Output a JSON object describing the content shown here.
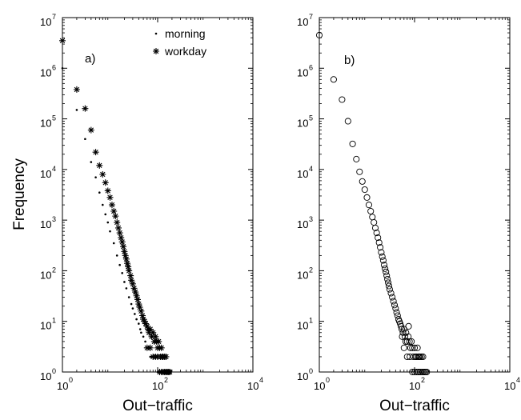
{
  "chart_data": [
    {
      "type": "scatter",
      "panel_label": "a)",
      "xlabel": "Out−traffic",
      "ylabel": "Frequency",
      "xscale": "log",
      "yscale": "log",
      "xlim": [
        1,
        10000
      ],
      "ylim": [
        1,
        10000000
      ],
      "x_ticks": [
        {
          "value": 1,
          "base": "10",
          "exp": "0"
        },
        {
          "value": 100,
          "base": "10",
          "exp": "2"
        },
        {
          "value": 10000,
          "base": "10",
          "exp": "4"
        }
      ],
      "y_ticks": [
        {
          "value": 1,
          "base": "10",
          "exp": "0"
        },
        {
          "value": 10,
          "base": "10",
          "exp": "1"
        },
        {
          "value": 100,
          "base": "10",
          "exp": "2"
        },
        {
          "value": 1000,
          "base": "10",
          "exp": "3"
        },
        {
          "value": 10000,
          "base": "10",
          "exp": "4"
        },
        {
          "value": 100000,
          "base": "10",
          "exp": "5"
        },
        {
          "value": 1000000,
          "base": "10",
          "exp": "6"
        },
        {
          "value": 10000000,
          "base": "10",
          "exp": "7"
        }
      ],
      "legend": "top-right",
      "series": [
        {
          "name": "morning",
          "marker": "dot",
          "points": [
            [
              1,
              1000000
            ],
            [
              2,
              150000
            ],
            [
              3,
              40000
            ],
            [
              4,
              14000
            ],
            [
              5,
              7000
            ],
            [
              6,
              3500
            ],
            [
              7,
              2000
            ],
            [
              8,
              1300
            ],
            [
              9,
              900
            ],
            [
              10,
              600
            ],
            [
              12,
              350
            ],
            [
              14,
              200
            ],
            [
              16,
              130
            ],
            [
              18,
              90
            ],
            [
              20,
              60
            ],
            [
              22,
              45
            ],
            [
              25,
              30
            ],
            [
              28,
              22
            ],
            [
              30,
              18
            ],
            [
              33,
              14
            ],
            [
              36,
              11
            ],
            [
              40,
              9
            ],
            [
              43,
              7
            ],
            [
              45,
              6
            ],
            [
              50,
              5
            ],
            [
              55,
              4
            ],
            [
              60,
              3
            ],
            [
              65,
              3
            ],
            [
              70,
              2
            ],
            [
              75,
              2
            ],
            [
              80,
              2
            ],
            [
              90,
              2
            ],
            [
              100,
              1
            ],
            [
              110,
              1
            ],
            [
              120,
              1
            ],
            [
              130,
              1
            ],
            [
              140,
              1
            ],
            [
              150,
              1
            ],
            [
              170,
              1
            ],
            [
              190,
              1
            ]
          ]
        },
        {
          "name": "workday",
          "marker": "star",
          "points": [
            [
              1,
              3500000
            ],
            [
              2,
              380000
            ],
            [
              3,
              160000
            ],
            [
              4,
              60000
            ],
            [
              5,
              22000
            ],
            [
              6,
              12000
            ],
            [
              7,
              8000
            ],
            [
              8,
              5500
            ],
            [
              9,
              3800
            ],
            [
              10,
              2800
            ],
            [
              11,
              2000
            ],
            [
              12,
              1500
            ],
            [
              13,
              1200
            ],
            [
              14,
              900
            ],
            [
              15,
              700
            ],
            [
              16,
              560
            ],
            [
              17,
              450
            ],
            [
              18,
              370
            ],
            [
              19,
              300
            ],
            [
              20,
              240
            ],
            [
              21,
              200
            ],
            [
              22,
              170
            ],
            [
              23,
              140
            ],
            [
              24,
              120
            ],
            [
              25,
              100
            ],
            [
              27,
              80
            ],
            [
              28,
              65
            ],
            [
              30,
              55
            ],
            [
              32,
              45
            ],
            [
              34,
              38
            ],
            [
              36,
              32
            ],
            [
              38,
              27
            ],
            [
              40,
              22
            ],
            [
              42,
              19
            ],
            [
              45,
              16
            ],
            [
              48,
              13
            ],
            [
              50,
              11
            ],
            [
              53,
              10
            ],
            [
              56,
              9
            ],
            [
              60,
              8
            ],
            [
              63,
              7
            ],
            [
              66,
              6
            ],
            [
              70,
              7
            ],
            [
              75,
              5
            ],
            [
              80,
              6
            ],
            [
              85,
              4
            ],
            [
              90,
              5
            ],
            [
              95,
              4
            ],
            [
              100,
              3
            ],
            [
              105,
              4
            ],
            [
              110,
              3
            ],
            [
              115,
              2
            ],
            [
              120,
              3
            ],
            [
              125,
              2
            ],
            [
              130,
              2
            ],
            [
              140,
              2
            ],
            [
              150,
              2
            ],
            [
              60,
              3
            ],
            [
              70,
              3
            ],
            [
              80,
              2
            ],
            [
              90,
              2
            ],
            [
              100,
              2
            ],
            [
              110,
              1
            ],
            [
              120,
              1
            ],
            [
              130,
              1
            ],
            [
              140,
              1
            ],
            [
              150,
              1
            ],
            [
              160,
              1
            ],
            [
              170,
              1
            ],
            [
              180,
              1
            ]
          ]
        }
      ]
    },
    {
      "type": "scatter",
      "panel_label": "b)",
      "xlabel": "Out−traffic",
      "ylabel": "",
      "xscale": "log",
      "yscale": "log",
      "xlim": [
        1,
        10000
      ],
      "ylim": [
        1,
        10000000
      ],
      "x_ticks": [
        {
          "value": 1,
          "base": "10",
          "exp": "0"
        },
        {
          "value": 100,
          "base": "10",
          "exp": "2"
        },
        {
          "value": 10000,
          "base": "10",
          "exp": "4"
        }
      ],
      "y_ticks": [
        {
          "value": 1,
          "base": "10",
          "exp": "0"
        },
        {
          "value": 10,
          "base": "10",
          "exp": "1"
        },
        {
          "value": 100,
          "base": "10",
          "exp": "2"
        },
        {
          "value": 1000,
          "base": "10",
          "exp": "3"
        },
        {
          "value": 10000,
          "base": "10",
          "exp": "4"
        },
        {
          "value": 100000,
          "base": "10",
          "exp": "5"
        },
        {
          "value": 1000000,
          "base": "10",
          "exp": "6"
        },
        {
          "value": 10000000,
          "base": "10",
          "exp": "7"
        }
      ],
      "series": [
        {
          "marker": "circle",
          "points": [
            [
              1,
              4500000
            ],
            [
              2,
              600000
            ],
            [
              3,
              240000
            ],
            [
              4,
              90000
            ],
            [
              5,
              32000
            ],
            [
              6,
              16000
            ],
            [
              7,
              9000
            ],
            [
              8,
              5800
            ],
            [
              9,
              4000
            ],
            [
              10,
              2800
            ],
            [
              11,
              2000
            ],
            [
              12,
              1500
            ],
            [
              13,
              1150
            ],
            [
              14,
              900
            ],
            [
              15,
              700
            ],
            [
              16,
              560
            ],
            [
              17,
              450
            ],
            [
              18,
              360
            ],
            [
              19,
              290
            ],
            [
              20,
              230
            ],
            [
              21,
              190
            ],
            [
              22,
              160
            ],
            [
              23,
              130
            ],
            [
              24,
              110
            ],
            [
              25,
              95
            ],
            [
              26,
              80
            ],
            [
              27,
              68
            ],
            [
              28,
              58
            ],
            [
              29,
              50
            ],
            [
              30,
              43
            ],
            [
              32,
              36
            ],
            [
              34,
              30
            ],
            [
              36,
              25
            ],
            [
              38,
              21
            ],
            [
              40,
              18
            ],
            [
              42,
              15
            ],
            [
              44,
              13
            ],
            [
              46,
              11
            ],
            [
              48,
              10
            ],
            [
              50,
              9
            ],
            [
              52,
              8
            ],
            [
              54,
              7
            ],
            [
              57,
              6
            ],
            [
              60,
              7
            ],
            [
              63,
              5
            ],
            [
              66,
              6
            ],
            [
              70,
              4
            ],
            [
              74,
              5
            ],
            [
              78,
              4
            ],
            [
              82,
              3
            ],
            [
              86,
              4
            ],
            [
              90,
              3
            ],
            [
              95,
              2
            ],
            [
              100,
              3
            ],
            [
              105,
              2
            ],
            [
              110,
              2
            ],
            [
              115,
              3
            ],
            [
              120,
              2
            ],
            [
              125,
              2
            ],
            [
              130,
              2
            ],
            [
              140,
              2
            ],
            [
              150,
              2
            ],
            [
              60,
              3
            ],
            [
              70,
              2
            ],
            [
              80,
              2
            ],
            [
              90,
              1
            ],
            [
              100,
              1
            ],
            [
              110,
              1
            ],
            [
              120,
              1
            ],
            [
              130,
              1
            ],
            [
              140,
              1
            ],
            [
              150,
              1
            ],
            [
              160,
              1
            ],
            [
              170,
              1
            ],
            [
              180,
              1
            ],
            [
              75,
              8
            ],
            [
              65,
              4
            ],
            [
              55,
              5
            ]
          ]
        }
      ]
    }
  ]
}
